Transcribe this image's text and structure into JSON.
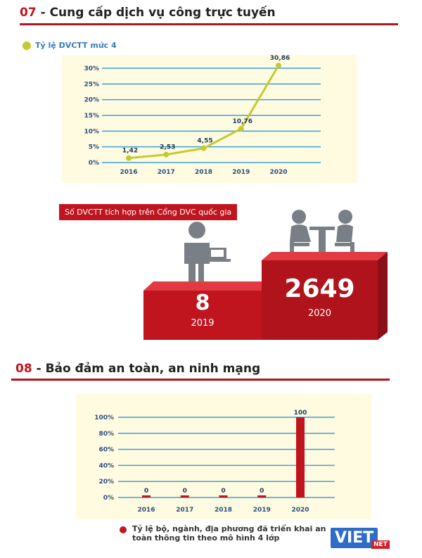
{
  "section7": {
    "number": "07",
    "title": " - Cung cấp dịch vụ công trực tuyến"
  },
  "section8": {
    "number": "08",
    "title": " - Bảo đảm an toàn, an ninh mạng"
  },
  "chart1_legend": "Tỷ lệ DVCTT mức 4",
  "integration": {
    "banner": "Số DVCTT tích hợp trên Cổng DVC quốc gia",
    "left_value": "8",
    "left_year": "2019",
    "right_value": "2649",
    "right_year": "2020"
  },
  "chart2_legend": "Tỷ lệ bộ, ngành, địa phương đã triển khai an toàn thông tin theo mô hình 4 lớp",
  "logo": {
    "main": "VIET",
    "sub": "NET"
  },
  "colors": {
    "accent_red": "#c0151f",
    "line_green": "#c5c934",
    "grid_blue": "#3ba0d8",
    "panel_bg": "#fffbe0",
    "axis_text": "#2b4f80"
  },
  "chart_data": [
    {
      "type": "line",
      "categories": [
        "2016",
        "2017",
        "2018",
        "2019",
        "2020"
      ],
      "values": [
        1.42,
        2.53,
        4.55,
        10.76,
        30.86
      ],
      "data_labels": [
        "1,42",
        "2,53",
        "4,55",
        "10,76",
        "30,86"
      ],
      "y_ticks": [
        "0%",
        "5%",
        "10%",
        "15%",
        "20%",
        "25%",
        "30%"
      ],
      "ylim": [
        0,
        30
      ],
      "grid": true,
      "series_name": "Tỷ lệ DVCTT mức 4"
    },
    {
      "type": "bar",
      "categories": [
        "2016",
        "2017",
        "2018",
        "2019",
        "2020"
      ],
      "values": [
        0,
        0,
        0,
        0,
        100
      ],
      "data_labels": [
        "0",
        "0",
        "0",
        "0",
        "100"
      ],
      "y_ticks": [
        "0%",
        "20%",
        "40%",
        "60%",
        "80%",
        "100%"
      ],
      "ylim": [
        0,
        100
      ],
      "grid": true,
      "series_name": "Tỷ lệ bộ, ngành, địa phương đã triển khai an toàn thông tin theo mô hình 4 lớp"
    }
  ]
}
